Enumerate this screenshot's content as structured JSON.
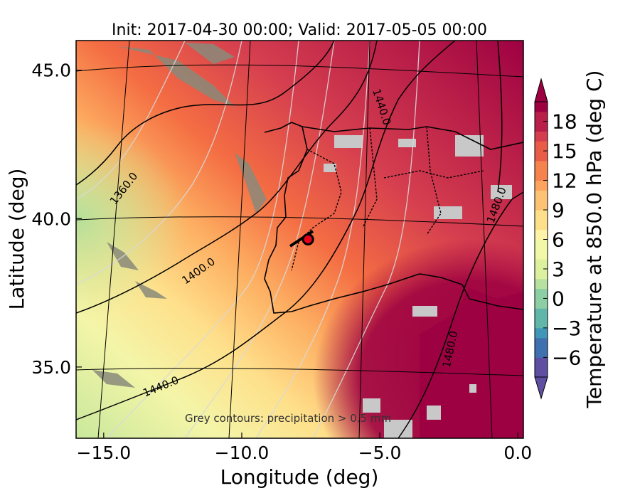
{
  "chart_data": {
    "type": "heatmap",
    "title": "Init: 2017-04-30 00:00; Valid: 2017-05-05 00:00",
    "xlabel": "Longitude (deg)",
    "ylabel": "Latitude (deg)",
    "xlim": [
      -16.0,
      0.2
    ],
    "ylim": [
      32.6,
      46.0
    ],
    "x_ticks": [
      -15.0,
      -10.0,
      -5.0,
      0.0
    ],
    "x_tick_labels": [
      "−15.0",
      "−10.0",
      "−5.0",
      "0.0"
    ],
    "y_ticks": [
      35.0,
      40.0,
      45.0
    ],
    "y_tick_labels": [
      "35.0",
      "40.0",
      "45.0"
    ],
    "colorbar": {
      "label": "Temperature at 850.0 hPa (deg C)",
      "range": [
        -8,
        20
      ],
      "ticks": [
        -6,
        -3,
        0,
        3,
        6,
        9,
        12,
        15,
        18
      ],
      "tick_labels": [
        "−6",
        "−3",
        "0",
        "3",
        "6",
        "9",
        "12",
        "15",
        "18"
      ],
      "extend": "both",
      "colormap": "Spectral_r"
    },
    "geopotential_contour_labels": [
      "1360.0",
      "1400.0",
      "1440.0",
      "1440.0",
      "1480.0",
      "1480.0"
    ],
    "marker": {
      "lon": -7.6,
      "lat": 39.3,
      "color": "#e8001a"
    },
    "annotation": "Grey contours: precipitation > 0.5 mm"
  }
}
